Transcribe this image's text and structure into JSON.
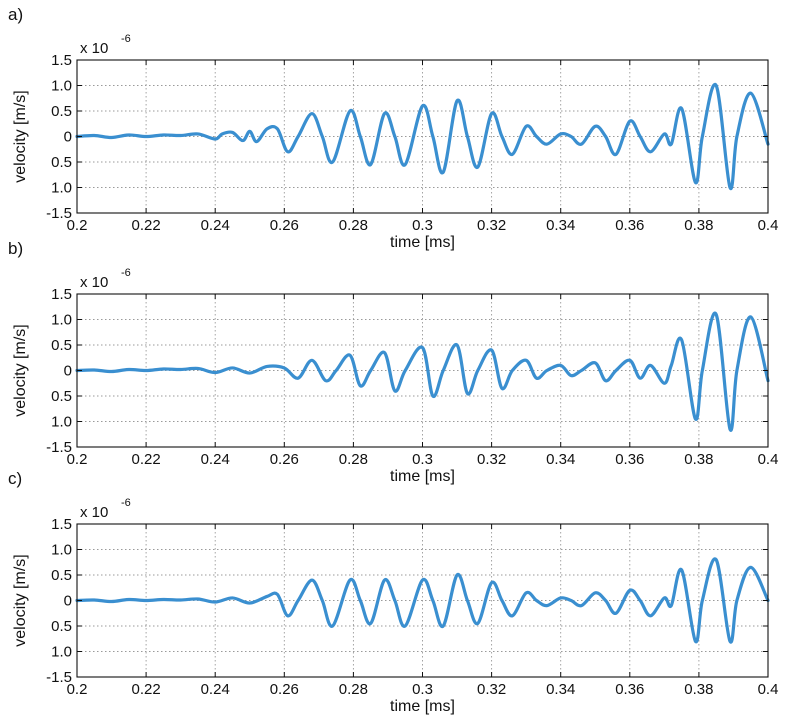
{
  "chart_data": [
    {
      "type": "line",
      "panel_label": "a)",
      "xlabel": "time [ms]",
      "ylabel": "velocity [m/s]",
      "y_multiplier": "x 10",
      "y_exponent": "-6",
      "xlim": [
        0.2,
        0.4
      ],
      "ylim": [
        -1.5,
        1.5
      ],
      "x_ticks": [
        "0.2",
        "0.22",
        "0.24",
        "0.26",
        "0.28",
        "0.3",
        "0.32",
        "0.34",
        "0.36",
        "0.38",
        "0.4"
      ],
      "y_ticks": [
        "1.5",
        "1.0",
        "0.5",
        "0",
        "0.5",
        "1.0",
        "-1.5"
      ],
      "grid": true,
      "line_color": "#3a8fd0",
      "series": [
        {
          "x": [
            0.2,
            0.205,
            0.21,
            0.215,
            0.22,
            0.225,
            0.23,
            0.235,
            0.24,
            0.242,
            0.245,
            0.248,
            0.25,
            0.252,
            0.255,
            0.258,
            0.261,
            0.264,
            0.268,
            0.271,
            0.274,
            0.279,
            0.282,
            0.285,
            0.289,
            0.292,
            0.295,
            0.3,
            0.303,
            0.306,
            0.31,
            0.313,
            0.316,
            0.32,
            0.323,
            0.326,
            0.33,
            0.333,
            0.336,
            0.34,
            0.343,
            0.346,
            0.35,
            0.353,
            0.356,
            0.36,
            0.363,
            0.366,
            0.37,
            0.372,
            0.375,
            0.379,
            0.381,
            0.385,
            0.389,
            0.391,
            0.395,
            0.4
          ],
          "y": [
            0,
            0.02,
            -0.02,
            0.03,
            0.0,
            0.03,
            0.02,
            0.05,
            -0.05,
            0.05,
            0.08,
            -0.08,
            0.1,
            -0.1,
            0.15,
            0.15,
            -0.3,
            0.0,
            0.45,
            0.0,
            -0.5,
            0.5,
            0.0,
            -0.55,
            0.45,
            0.0,
            -0.55,
            0.6,
            0.0,
            -0.7,
            0.7,
            0.0,
            -0.6,
            0.45,
            0.0,
            -0.35,
            0.2,
            0.0,
            -0.15,
            0.05,
            0.0,
            -0.15,
            0.2,
            0.0,
            -0.35,
            0.3,
            0.0,
            -0.3,
            0.05,
            -0.15,
            0.55,
            -0.9,
            0.0,
            1.0,
            -1.0,
            0.0,
            0.85,
            -0.15
          ]
        }
      ]
    },
    {
      "type": "line",
      "panel_label": "b)",
      "xlabel": "time [ms]",
      "ylabel": "velocity [m/s]",
      "y_multiplier": "x 10",
      "y_exponent": "-6",
      "xlim": [
        0.2,
        0.4
      ],
      "ylim": [
        -1.5,
        1.5
      ],
      "x_ticks": [
        "0.2",
        "0.22",
        "0.24",
        "0.26",
        "0.28",
        "0.3",
        "0.32",
        "0.34",
        "0.36",
        "0.38",
        "0.4"
      ],
      "y_ticks": [
        "1.5",
        "1.0",
        "0.5",
        "0",
        "0.5",
        "1.0",
        "-1.5"
      ],
      "grid": true,
      "line_color": "#3a8fd0",
      "series": [
        {
          "x": [
            0.2,
            0.205,
            0.21,
            0.215,
            0.22,
            0.225,
            0.23,
            0.235,
            0.24,
            0.245,
            0.25,
            0.255,
            0.26,
            0.264,
            0.268,
            0.272,
            0.275,
            0.279,
            0.282,
            0.285,
            0.289,
            0.292,
            0.295,
            0.3,
            0.303,
            0.306,
            0.31,
            0.313,
            0.316,
            0.32,
            0.323,
            0.326,
            0.33,
            0.333,
            0.336,
            0.34,
            0.343,
            0.346,
            0.35,
            0.353,
            0.356,
            0.36,
            0.363,
            0.366,
            0.37,
            0.372,
            0.375,
            0.379,
            0.381,
            0.385,
            0.389,
            0.391,
            0.395,
            0.4
          ],
          "y": [
            0,
            0.01,
            -0.02,
            0.02,
            0.0,
            0.03,
            0.02,
            0.04,
            -0.04,
            0.05,
            -0.05,
            0.08,
            0.05,
            -0.15,
            0.2,
            -0.2,
            0.0,
            0.3,
            -0.3,
            0.0,
            0.35,
            -0.4,
            0.0,
            0.45,
            -0.5,
            0.0,
            0.5,
            -0.45,
            0.0,
            0.4,
            -0.35,
            0.0,
            0.2,
            -0.15,
            0.0,
            0.1,
            -0.1,
            0.0,
            0.15,
            -0.2,
            0.0,
            0.2,
            -0.15,
            0.1,
            -0.25,
            0.1,
            0.6,
            -0.95,
            0.0,
            1.1,
            -1.15,
            0.0,
            1.05,
            -0.2
          ]
        }
      ]
    },
    {
      "type": "line",
      "panel_label": "c)",
      "xlabel": "time [ms]",
      "ylabel": "velocity [m/s]",
      "y_multiplier": "x 10",
      "y_exponent": "-6",
      "xlim": [
        0.2,
        0.4
      ],
      "ylim": [
        -1.5,
        1.5
      ],
      "x_ticks": [
        "0.2",
        "0.22",
        "0.24",
        "0.26",
        "0.28",
        "0.3",
        "0.32",
        "0.34",
        "0.36",
        "0.38",
        "0.4"
      ],
      "y_ticks": [
        "1.5",
        "1.0",
        "0.5",
        "0",
        "0.5",
        "1.0",
        "-1.5"
      ],
      "grid": true,
      "line_color": "#3a8fd0",
      "series": [
        {
          "x": [
            0.2,
            0.205,
            0.21,
            0.215,
            0.22,
            0.225,
            0.23,
            0.235,
            0.24,
            0.245,
            0.25,
            0.255,
            0.258,
            0.261,
            0.264,
            0.268,
            0.271,
            0.274,
            0.279,
            0.282,
            0.285,
            0.289,
            0.292,
            0.295,
            0.3,
            0.303,
            0.306,
            0.31,
            0.313,
            0.316,
            0.32,
            0.323,
            0.326,
            0.33,
            0.333,
            0.336,
            0.34,
            0.343,
            0.346,
            0.35,
            0.353,
            0.356,
            0.36,
            0.363,
            0.366,
            0.37,
            0.372,
            0.375,
            0.379,
            0.381,
            0.385,
            0.389,
            0.391,
            0.395,
            0.4
          ],
          "y": [
            0,
            0.01,
            -0.02,
            0.02,
            0.0,
            0.02,
            0.01,
            0.03,
            -0.03,
            0.05,
            -0.05,
            0.08,
            0.12,
            -0.3,
            0.0,
            0.4,
            0.0,
            -0.5,
            0.4,
            0.0,
            -0.45,
            0.4,
            0.0,
            -0.5,
            0.4,
            0.0,
            -0.5,
            0.5,
            0.0,
            -0.45,
            0.35,
            0.0,
            -0.3,
            0.15,
            0.0,
            -0.1,
            0.05,
            0.0,
            -0.1,
            0.15,
            0.0,
            -0.25,
            0.2,
            0.0,
            -0.3,
            0.05,
            -0.1,
            0.6,
            -0.8,
            0.0,
            0.8,
            -0.8,
            0.0,
            0.65,
            0.0
          ]
        }
      ]
    }
  ]
}
